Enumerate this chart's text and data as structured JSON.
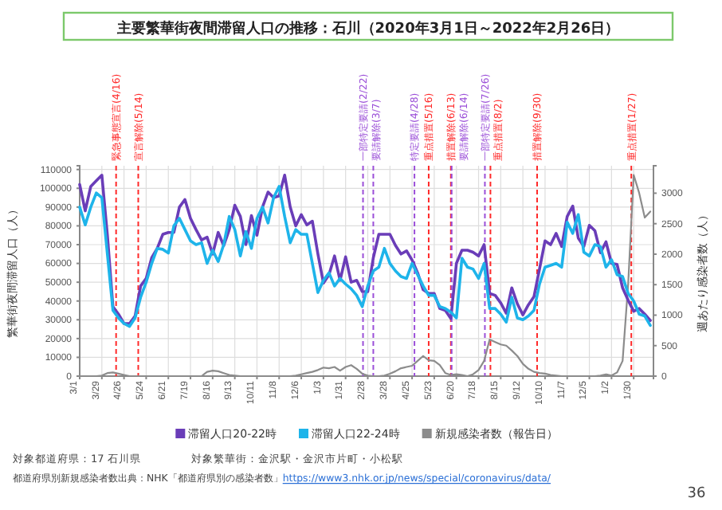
{
  "chart_data": {
    "type": "line",
    "title": "主要繁華街夜間滞留人口の推移：石川（2020年3月1日～2022年2月26日）",
    "ylabel": "繁華街夜間滞留人口（人）",
    "y2label": "週あたり感染者数（人）",
    "x": [
      "2020-03-01",
      "2020-03-08",
      "2020-03-15",
      "2020-03-22",
      "2020-03-29",
      "2020-04-05",
      "2020-04-12",
      "2020-04-19",
      "2020-04-26",
      "2020-05-03",
      "2020-05-10",
      "2020-05-17",
      "2020-05-24",
      "2020-05-31",
      "2020-06-07",
      "2020-06-14",
      "2020-06-21",
      "2020-06-28",
      "2020-07-05",
      "2020-07-12",
      "2020-07-19",
      "2020-07-26",
      "2020-08-02",
      "2020-08-09",
      "2020-08-16",
      "2020-08-23",
      "2020-08-30",
      "2020-09-06",
      "2020-09-13",
      "2020-09-20",
      "2020-09-27",
      "2020-10-04",
      "2020-10-11",
      "2020-10-18",
      "2020-10-25",
      "2020-11-01",
      "2020-11-08",
      "2020-11-15",
      "2020-11-22",
      "2020-11-29",
      "2020-12-06",
      "2020-12-13",
      "2020-12-20",
      "2020-12-27",
      "2021-01-03",
      "2021-01-10",
      "2021-01-17",
      "2021-01-24",
      "2021-01-31",
      "2021-02-07",
      "2021-02-14",
      "2021-02-21",
      "2021-02-28",
      "2021-03-07",
      "2021-03-14",
      "2021-03-21",
      "2021-03-28",
      "2021-04-04",
      "2021-04-11",
      "2021-04-18",
      "2021-04-25",
      "2021-05-02",
      "2021-05-09",
      "2021-05-16",
      "2021-05-23",
      "2021-05-30",
      "2021-06-06",
      "2021-06-13",
      "2021-06-20",
      "2021-06-27",
      "2021-07-04",
      "2021-07-11",
      "2021-07-18",
      "2021-07-25",
      "2021-08-01",
      "2021-08-08",
      "2021-08-15",
      "2021-08-22",
      "2021-08-29",
      "2021-09-05",
      "2021-09-12",
      "2021-09-19",
      "2021-09-26",
      "2021-10-03",
      "2021-10-10",
      "2021-10-17",
      "2021-10-24",
      "2021-10-31",
      "2021-11-07",
      "2021-11-14",
      "2021-11-21",
      "2021-11-28",
      "2021-12-05",
      "2021-12-12",
      "2021-12-19",
      "2021-12-26",
      "2022-01-02",
      "2022-01-09",
      "2022-01-16",
      "2022-01-23",
      "2022-01-30",
      "2022-02-06",
      "2022-02-13",
      "2022-02-20"
    ],
    "series": [
      {
        "name": "滞留人口20-22時",
        "color": "#6a3db8",
        "values": [
          102000,
          88000,
          101000,
          104000,
          107000,
          75000,
          37000,
          33000,
          28000,
          28000,
          32000,
          48000,
          52000,
          63000,
          68000,
          75500,
          76500,
          76500,
          90000,
          94000,
          84000,
          78000,
          72500,
          74000,
          65000,
          76500,
          69500,
          78000,
          91000,
          85000,
          70000,
          85500,
          75000,
          90000,
          98000,
          95000,
          96000,
          107000,
          90000,
          80000,
          86000,
          80500,
          82500,
          65000,
          49500,
          54000,
          64000,
          51000,
          63500,
          50000,
          51000,
          45000,
          45000,
          63000,
          75500,
          75500,
          75500,
          69600,
          65000,
          66700,
          61800,
          55000,
          46000,
          44000,
          44000,
          36000,
          35000,
          30600,
          60000,
          67000,
          67000,
          66000,
          64000,
          70000,
          44000,
          43000,
          39000,
          33500,
          47000,
          38500,
          32600,
          38000,
          42300,
          57000,
          72000,
          70000,
          76000,
          69000,
          85000,
          90500,
          73500,
          69000,
          80300,
          77400,
          65700,
          71500,
          60000,
          59500,
          47000,
          40400,
          34500,
          36000,
          33000,
          29600
        ]
      },
      {
        "name": "滞留人口22-24時",
        "color": "#1eb4ea",
        "values": [
          90000,
          80500,
          90000,
          97500,
          95000,
          65000,
          35000,
          31000,
          28000,
          26500,
          31000,
          42000,
          50000,
          60000,
          68000,
          67500,
          65500,
          80000,
          84000,
          78000,
          72000,
          70000,
          71000,
          60000,
          67000,
          61000,
          70000,
          85000,
          78000,
          64000,
          77000,
          68000,
          84000,
          90000,
          81500,
          95000,
          101000,
          85000,
          71000,
          78000,
          75500,
          75500,
          60000,
          44500,
          51000,
          55000,
          48000,
          52000,
          49000,
          46500,
          43000,
          37000,
          48000,
          56000,
          58000,
          68000,
          60000,
          56000,
          53000,
          52000,
          60000,
          54000,
          48000,
          43000,
          43000,
          37000,
          36000,
          34000,
          31000,
          62800,
          58000,
          57000,
          52000,
          60000,
          36000,
          36000,
          33000,
          28700,
          42000,
          31000,
          30000,
          32000,
          35000,
          49000,
          58000,
          59000,
          60000,
          58000,
          82000,
          76000,
          86000,
          66000,
          64000,
          70000,
          69000,
          58000,
          62000,
          54000,
          53000,
          44000,
          40000,
          33000,
          32000,
          27000
        ]
      },
      {
        "name": "新規感染者数（報告日）",
        "color": "#8c8c8c",
        "axis": "y2",
        "values": [
          0,
          0,
          0,
          0,
          10,
          50,
          60,
          40,
          20,
          0,
          0,
          0,
          0,
          0,
          0,
          0,
          0,
          0,
          0,
          0,
          0,
          0,
          0,
          70,
          90,
          80,
          50,
          20,
          10,
          0,
          0,
          0,
          0,
          0,
          0,
          0,
          0,
          0,
          0,
          10,
          30,
          50,
          70,
          100,
          140,
          130,
          150,
          90,
          150,
          180,
          120,
          40,
          10,
          0,
          0,
          10,
          40,
          80,
          130,
          150,
          170,
          250,
          330,
          260,
          250,
          180,
          50,
          20,
          30,
          20,
          0,
          30,
          100,
          250,
          600,
          560,
          520,
          500,
          420,
          330,
          200,
          120,
          70,
          50,
          40,
          20,
          10,
          0,
          0,
          0,
          0,
          0,
          0,
          0,
          10,
          30,
          10,
          60,
          250,
          1500,
          3300,
          3000,
          2600,
          2700
        ]
      }
    ],
    "xlim": [
      "2020-03-01",
      "2022-02-24"
    ],
    "xticks": [
      {
        "value": "2020-03-01",
        "label": "3/1"
      },
      {
        "value": "2020-03-29",
        "label": "3/29"
      },
      {
        "value": "2020-04-26",
        "label": "4/26"
      },
      {
        "value": "2020-05-24",
        "label": "5/24"
      },
      {
        "value": "2020-06-21",
        "label": "6/21"
      },
      {
        "value": "2020-07-19",
        "label": "7/19"
      },
      {
        "value": "2020-08-16",
        "label": "8/16"
      },
      {
        "value": "2020-09-13",
        "label": "9/13"
      },
      {
        "value": "2020-10-11",
        "label": "10/11"
      },
      {
        "value": "2020-11-08",
        "label": "11/8"
      },
      {
        "value": "2020-12-06",
        "label": "12/6"
      },
      {
        "value": "2021-01-03",
        "label": "1/3"
      },
      {
        "value": "2021-01-31",
        "label": "1/31"
      },
      {
        "value": "2021-02-28",
        "label": "2/28"
      },
      {
        "value": "2021-03-28",
        "label": "3/28"
      },
      {
        "value": "2021-04-25",
        "label": "4/25"
      },
      {
        "value": "2021-05-23",
        "label": "5/23"
      },
      {
        "value": "2021-06-20",
        "label": "6/20"
      },
      {
        "value": "2021-07-18",
        "label": "7/18"
      },
      {
        "value": "2021-08-15",
        "label": "8/15"
      },
      {
        "value": "2021-09-12",
        "label": "9/12"
      },
      {
        "value": "2021-10-10",
        "label": "10/10"
      },
      {
        "value": "2021-11-07",
        "label": "11/7"
      },
      {
        "value": "2021-12-05",
        "label": "12/5"
      },
      {
        "value": "2022-01-02",
        "label": "1/2"
      },
      {
        "value": "2022-01-30",
        "label": "1/30"
      }
    ],
    "ylim": [
      0,
      112000
    ],
    "yticks": [
      0,
      10000,
      20000,
      30000,
      40000,
      50000,
      60000,
      70000,
      80000,
      90000,
      100000,
      110000
    ],
    "y2lim": [
      0,
      3450
    ],
    "y2ticks": [
      0,
      500,
      1000,
      1500,
      2000,
      2500,
      3000
    ],
    "ref_lines": [
      {
        "axis": "x",
        "value": "2020-04-16",
        "label": "緊急事態宣言(4/16)",
        "color": "#ff2a2a",
        "line_style": "dashed"
      },
      {
        "axis": "x",
        "value": "2020-05-14",
        "label": "宣言解除(5/14)",
        "color": "#ff2a2a",
        "line_style": "dashed"
      },
      {
        "axis": "x",
        "value": "2021-02-22",
        "label": "一部特定要請(2/22)",
        "color": "#9b4fd8",
        "line_style": "dashed"
      },
      {
        "axis": "x",
        "value": "2021-03-07",
        "label": "要請解除(3/7)",
        "color": "#9b4fd8",
        "line_style": "dashed"
      },
      {
        "axis": "x",
        "value": "2021-04-28",
        "label": "特定要請(4/28)",
        "color": "#9b4fd8",
        "line_style": "dashed"
      },
      {
        "axis": "x",
        "value": "2021-05-16",
        "label": "重点措置(5/16)",
        "color": "#ff2a2a",
        "line_style": "dashed"
      },
      {
        "axis": "x",
        "value": "2021-06-13",
        "label": "措置解除(6/13)",
        "color": "#ff2a2a",
        "line_style": "dashed"
      },
      {
        "axis": "x",
        "value": "2021-06-14",
        "label": "要請解除(6/14)",
        "color": "#9b4fd8",
        "line_style": "dashed"
      },
      {
        "axis": "x",
        "value": "2021-07-26",
        "label": "一部特定要請(7/26)",
        "color": "#9b4fd8",
        "line_style": "dashed"
      },
      {
        "axis": "x",
        "value": "2021-08-02",
        "label": "重点措置(8/2)",
        "color": "#ff2a2a",
        "line_style": "dashed"
      },
      {
        "axis": "x",
        "value": "2021-09-30",
        "label": "措置解除(9/30)",
        "color": "#ff2a2a",
        "line_style": "dashed"
      },
      {
        "axis": "x",
        "value": "2022-01-27",
        "label": "重点措置(1/27)",
        "color": "#ff2a2a",
        "line_style": "dashed"
      }
    ],
    "grid": true,
    "legend": "bottom",
    "line_style": "solid",
    "marker": "none",
    "annotations": [
      "対象都道府県：17 石川県",
      "対象繁華街：金沢駅・金沢市片町・小松駅",
      "都道府県別新規感染者数出典：NHK「都道府県別の感染者数」https://www3.nhk.or.jp/news/special/coronavirus/data/",
      "36"
    ]
  }
}
